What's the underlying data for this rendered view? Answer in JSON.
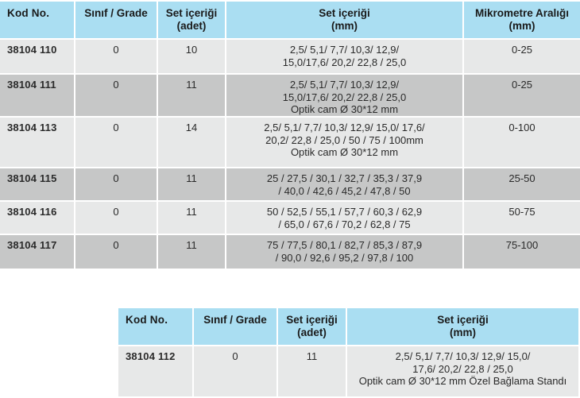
{
  "colors": {
    "header_bg": "#aadef2",
    "row_light": "#e7e8e8",
    "row_dark": "#c6c7c7",
    "divider": "#ffffff",
    "header_text": "#1a1a1a",
    "body_text": "#2a2a2a"
  },
  "table_main": {
    "headers": {
      "kod": "Kod No.",
      "grade": "Sınıf / Grade",
      "adet_line1": "Set içeriği",
      "adet_line2": "(adet)",
      "mm_line1": "Set içeriği",
      "mm_line2": "(mm)",
      "range_line1": "Mikrometre Aralığı",
      "range_line2": "(mm)"
    },
    "rows": [
      {
        "kod": "38104 110",
        "grade": "0",
        "adet": "10",
        "mm_lines": [
          "2,5/ 5,1/ 7,7/ 10,3/ 12,9/",
          "15,0/17,6/ 20,2/ 22,8 / 25,0"
        ],
        "range": "0-25"
      },
      {
        "kod": "38104 111",
        "grade": "0",
        "adet": "11",
        "mm_lines": [
          "2,5/ 5,1/ 7,7/ 10,3/ 12,9/",
          "15,0/17,6/ 20,2/ 22,8 / 25,0",
          "Optik cam Ø 30*12 mm"
        ],
        "range": "0-25"
      },
      {
        "kod": "38104 113",
        "grade": "0",
        "adet": "14",
        "mm_lines": [
          "2,5/ 5,1/ 7,7/ 10,3/ 12,9/ 15,0/ 17,6/",
          "20,2/ 22,8 / 25,0 / 50 / 75 / 100mm",
          "Optik cam Ø 30*12 mm"
        ],
        "range": "0-100"
      },
      {
        "kod": "38104 115",
        "grade": "0",
        "adet": "11",
        "mm_lines": [
          "25 / 27,5 / 30,1 / 32,7 / 35,3 / 37,9",
          "/ 40,0 / 42,6 / 45,2 / 47,8 / 50"
        ],
        "range": "25-50"
      },
      {
        "kod": "38104 116",
        "grade": "0",
        "adet": "11",
        "mm_lines": [
          "50 / 52,5 / 55,1 / 57,7 / 60,3 / 62,9",
          "/ 65,0 / 67,6 / 70,2 / 62,8 / 75"
        ],
        "range": "50-75"
      },
      {
        "kod": "38104 117",
        "grade": "0",
        "adet": "11",
        "mm_lines": [
          "75 / 77,5 / 80,1 / 82,7 / 85,3 / 87,9",
          "/ 90,0 / 92,6 / 95,2 / 97,8 / 100"
        ],
        "range": "75-100"
      }
    ]
  },
  "table_secondary": {
    "headers": {
      "kod": "Kod No.",
      "grade": "Sınıf / Grade",
      "adet_line1": "Set içeriği",
      "adet_line2": "(adet)",
      "mm_line1": "Set içeriği",
      "mm_line2": "(mm)"
    },
    "rows": [
      {
        "kod": "38104 112",
        "grade": "0",
        "adet": "11",
        "mm_lines": [
          "2,5/ 5,1/ 7,7/ 10,3/ 12,9/ 15,0/",
          "17,6/ 20,2/ 22,8 / 25,0",
          "Optik cam Ø 30*12 mm Özel Bağlama Standı"
        ]
      }
    ]
  }
}
